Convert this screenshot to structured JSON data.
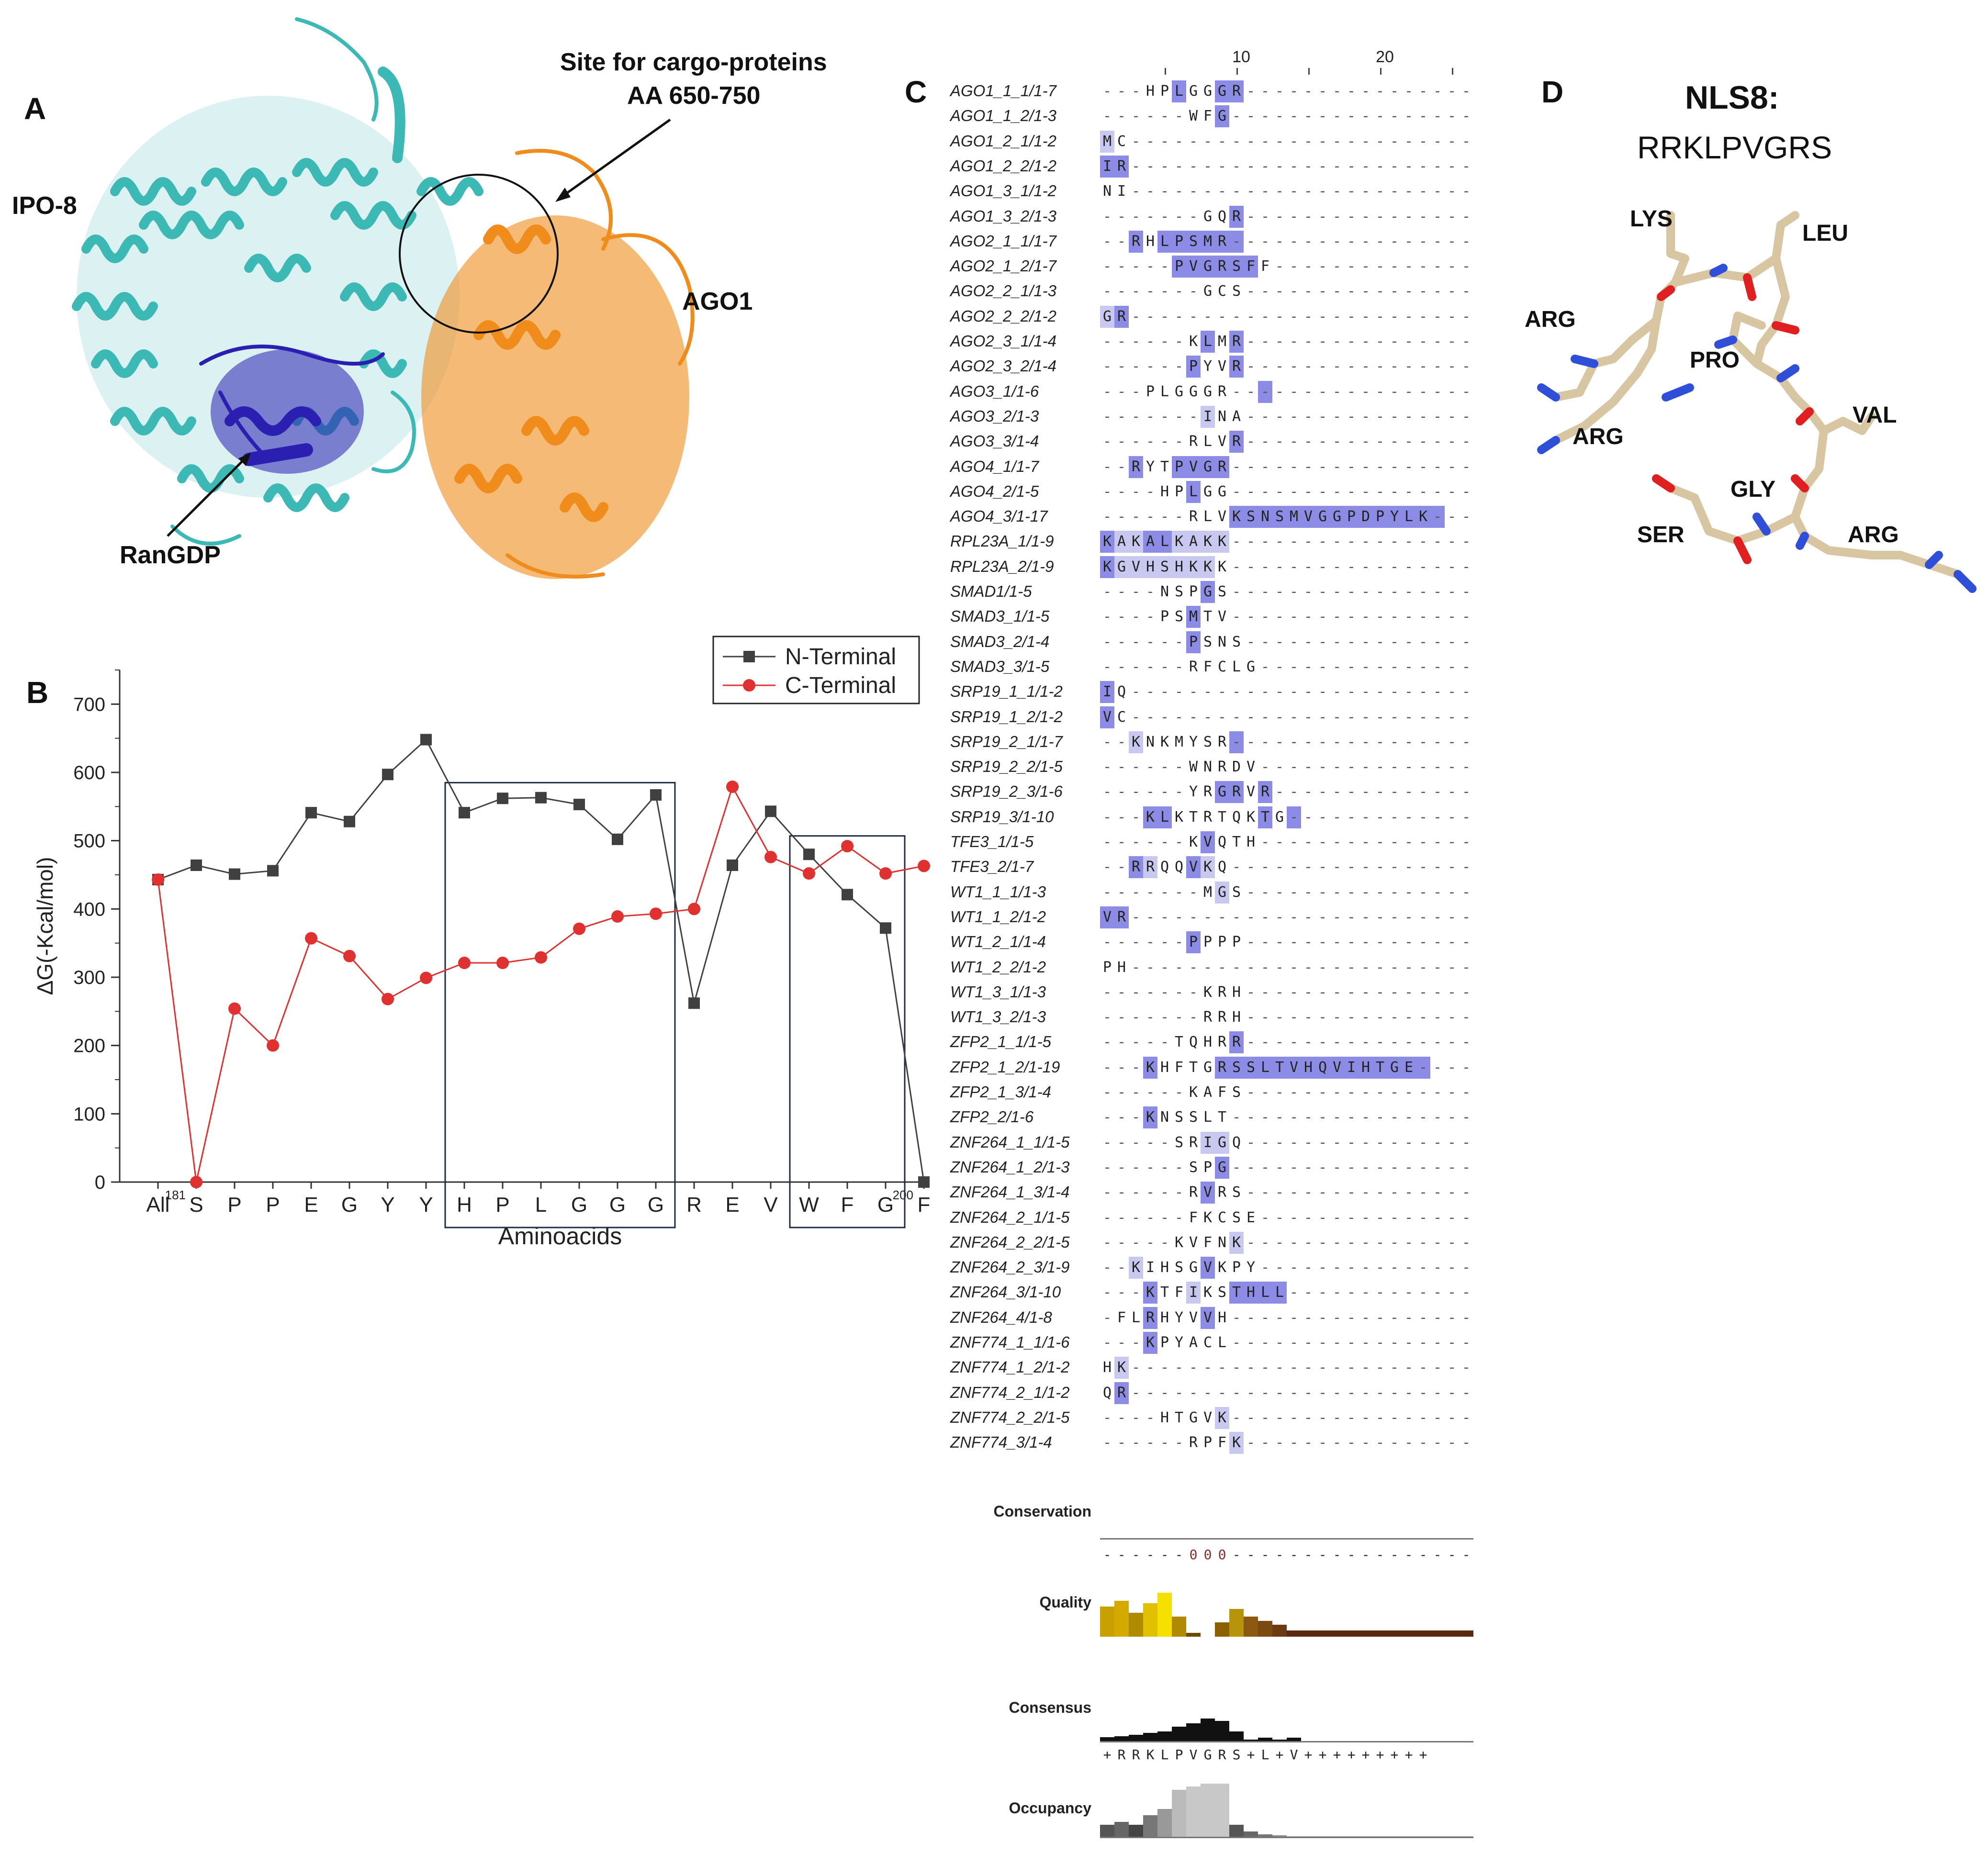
{
  "panels": {
    "A": "A",
    "B": "B",
    "C": "C",
    "D": "D"
  },
  "panel_a": {
    "labels": {
      "ipo8": "IPO-8",
      "site_line1": "Site for cargo-proteins",
      "site_line2": "AA 650-750",
      "ago1": "AGO1",
      "rangdp": "RanGDP"
    },
    "colors": {
      "ipo8": "#3cb9b5",
      "ago1": "#f08c1c",
      "rangdp": "#2a1fb0"
    }
  },
  "chart_data": {
    "type": "line",
    "categories": [
      "All",
      "S",
      "P",
      "P",
      "E",
      "G",
      "Y",
      "Y",
      "H",
      "P",
      "L",
      "G",
      "G",
      "G",
      "R",
      "E",
      "V",
      "W",
      "F",
      "G",
      "F"
    ],
    "category_superscripts": {
      "1": "181",
      "20": "200"
    },
    "series": [
      {
        "name": "N-Terminal",
        "color": "#404040",
        "marker": "square",
        "values": [
          443,
          464,
          451,
          456,
          541,
          528,
          597,
          648,
          541,
          562,
          563,
          553,
          502,
          567,
          262,
          464,
          543,
          480,
          421,
          372,
          0
        ]
      },
      {
        "name": "C-Terminal",
        "color": "#e03030",
        "marker": "circle",
        "values": [
          443,
          0,
          254,
          200,
          357,
          331,
          268,
          299,
          321,
          321,
          329,
          371,
          389,
          393,
          400,
          579,
          476,
          452,
          492,
          452,
          463
        ]
      }
    ],
    "ylabel": "ΔG(-Kcal/mol)",
    "xlabel": "Aminoacids",
    "ylim": [
      0,
      750
    ],
    "yticks": [
      0,
      100,
      200,
      300,
      400,
      500,
      600,
      700
    ],
    "highlight_boxes": [
      [
        8,
        13
      ],
      [
        17,
        19
      ]
    ],
    "legend_position": "top-right"
  },
  "panel_c": {
    "ruler": {
      "ticks": [
        "10",
        "20"
      ]
    },
    "highlight_colors": {
      "dark": "#8c8ce6",
      "light": "#c8c8f0"
    },
    "rows": [
      {
        "name": "AGO1_1_1/1-7",
        "seq": "---HPLGGGR----------------",
        "hl": "-----d--dd----------------"
      },
      {
        "name": "AGO1_1_2/1-3",
        "seq": "------WFG-----------------",
        "hl": "--------d-----------------"
      },
      {
        "name": "AGO1_2_1/1-2",
        "seq": "MC------------------------",
        "hl": "l-------------------------"
      },
      {
        "name": "AGO1_2_2/1-2",
        "seq": "IR------------------------",
        "hl": "dd------------------------"
      },
      {
        "name": "AGO1_3_1/1-2",
        "seq": "NI------------------------",
        "hl": "--------------------------"
      },
      {
        "name": "AGO1_3_2/1-3",
        "seq": "-------GQR----------------",
        "hl": "---------d----------------"
      },
      {
        "name": "AGO2_1_1/1-7",
        "seq": "--RHLPSMR-----------------",
        "hl": "--d-dddddd----------------"
      },
      {
        "name": "AGO2_1_2/1-7",
        "seq": "-----PVGRSFF--------------",
        "hl": "-----dddddd---------------"
      },
      {
        "name": "AGO2_2_1/1-3",
        "seq": "-------GCS----------------",
        "hl": "--------------------------"
      },
      {
        "name": "AGO2_2_2/1-2",
        "seq": "GR------------------------",
        "hl": "ld------------------------"
      },
      {
        "name": "AGO2_3_1/1-4",
        "seq": "------KLMR----------------",
        "hl": "-------d-d----------------"
      },
      {
        "name": "AGO2_3_2/1-4",
        "seq": "------PYVR----------------",
        "hl": "------d--d----------------"
      },
      {
        "name": "AGO3_1/1-6",
        "seq": "---PLGGGR-----------------",
        "hl": "-----------d--------------"
      },
      {
        "name": "AGO3_2/1-3",
        "seq": "-------INA----------------",
        "hl": "-------l------------------"
      },
      {
        "name": "AGO3_3/1-4",
        "seq": "------RLVR----------------",
        "hl": "---------d----------------"
      },
      {
        "name": "AGO4_1/1-7",
        "seq": "--RYTPVGR-----------------",
        "hl": "--d--dddd-----------------"
      },
      {
        "name": "AGO4_2/1-5",
        "seq": "----HPLGG-----------------",
        "hl": "------d-------------------"
      },
      {
        "name": "AGO4_3/1-17",
        "seq": "------RLVKSNSMVGGPDPYLK---",
        "hl": "---------ddddddddddddddd--"
      },
      {
        "name": "RPL23A_1/1-9",
        "seq": "KAKALKAKK-----------------",
        "hl": "dllddlllL-----------------"
      },
      {
        "name": "RPL23A_2/1-9",
        "seq": "KGVHSHKKK-----------------",
        "hl": "dlllllll------------------"
      },
      {
        "name": "SMAD1/1-5",
        "seq": "----NSPGS-----------------",
        "hl": "-------d------------------"
      },
      {
        "name": "SMAD3_1/1-5",
        "seq": "----PSMTV-----------------",
        "hl": "------d-------------------"
      },
      {
        "name": "SMAD3_2/1-4",
        "seq": "------PSNS----------------",
        "hl": "------d-------------------"
      },
      {
        "name": "SMAD3_3/1-5",
        "seq": "------RFCLG---------------",
        "hl": "--------------------------"
      },
      {
        "name": "SRP19_1_1/1-2",
        "seq": "IQ------------------------",
        "hl": "d-------------------------"
      },
      {
        "name": "SRP19_1_2/1-2",
        "seq": "VC------------------------",
        "hl": "d-------------------------"
      },
      {
        "name": "SRP19_2_1/1-7",
        "seq": "--KNKMYSR-----------------",
        "hl": "--l------d----------------"
      },
      {
        "name": "SRP19_2_2/1-5",
        "seq": "------WNRDV---------------",
        "hl": "--------------------------"
      },
      {
        "name": "SRP19_2_3/1-6",
        "seq": "------YRGRVR--------------",
        "hl": "--------dd-d--------------"
      },
      {
        "name": "SRP19_3/1-10",
        "seq": "---KLKTRTQKTG-------------",
        "hl": "---dd------d-d------------"
      },
      {
        "name": "TFE3_1/1-5",
        "seq": "------KVQTH---------------",
        "hl": "-------d------------------"
      },
      {
        "name": "TFE3_2/1-7",
        "seq": "--RRQQVKQ-----------------",
        "hl": "--dl--dl------------------"
      },
      {
        "name": "WT1_1_1/1-3",
        "seq": "-------MGS----------------",
        "hl": "--------l-----------------"
      },
      {
        "name": "WT1_1_2/1-2",
        "seq": "VR------------------------",
        "hl": "dd------------------------"
      },
      {
        "name": "WT1_2_1/1-4",
        "seq": "------PPPP----------------",
        "hl": "------d-------------------"
      },
      {
        "name": "WT1_2_2/1-2",
        "seq": "PH------------------------",
        "hl": "--------------------------"
      },
      {
        "name": "WT1_3_1/1-3",
        "seq": "-------KRH----------------",
        "hl": "--------------------------"
      },
      {
        "name": "WT1_3_2/1-3",
        "seq": "-------RRH----------------",
        "hl": "--------------------------"
      },
      {
        "name": "ZFP2_1_1/1-5",
        "seq": "-----TQHRR----------------",
        "hl": "---------d----------------"
      },
      {
        "name": "ZFP2_1_2/1-19",
        "seq": "---KHFTGRSSLTVHQVIHTGE----",
        "hl": "---d----ddddddddddddddd---"
      },
      {
        "name": "ZFP2_1_3/1-4",
        "seq": "------KAFS----------------",
        "hl": "--------------------------"
      },
      {
        "name": "ZFP2_2/1-6",
        "seq": "---KNSSLT-----------------",
        "hl": "---d----------------------"
      },
      {
        "name": "ZNF264_1_1/1-5",
        "seq": "-----SRIGQ----------------",
        "hl": "-------ll-----------------"
      },
      {
        "name": "ZNF264_1_2/1-3",
        "seq": "------SPG-----------------",
        "hl": "--------d-----------------"
      },
      {
        "name": "ZNF264_1_3/1-4",
        "seq": "------RVRS----------------",
        "hl": "-------d------------------"
      },
      {
        "name": "ZNF264_2_1/1-5",
        "seq": "------FKCSE---------------",
        "hl": "--------------------------"
      },
      {
        "name": "ZNF264_2_2/1-5",
        "seq": "-----KVFNK----------------",
        "hl": "---------l----------------"
      },
      {
        "name": "ZNF264_2_3/1-9",
        "seq": "--KIHSGVKPY---------------",
        "hl": "--l----d------------------"
      },
      {
        "name": "ZNF264_3/1-10",
        "seq": "---KTFIKSTHLL-------------",
        "hl": "---d--l--dddd-------------"
      },
      {
        "name": "ZNF264_4/1-8",
        "seq": "-FLRHYVVH-----------------",
        "hl": "---d---d------------------"
      },
      {
        "name": "ZNF774_1_1/1-6",
        "seq": "---KPYACL-----------------",
        "hl": "---d----------------------"
      },
      {
        "name": "ZNF774_1_2/1-2",
        "seq": "HK------------------------",
        "hl": "-l------------------------"
      },
      {
        "name": "ZNF774_2_1/1-2",
        "seq": "QR------------------------",
        "hl": "-d------------------------"
      },
      {
        "name": "ZNF774_2_2/1-5",
        "seq": "----HTGVK-----------------",
        "hl": "--------l-----------------"
      },
      {
        "name": "ZNF774_3/1-4",
        "seq": "------RPFK----------------",
        "hl": "---------l----------------"
      }
    ],
    "tracks": {
      "conservation_label": "Conservation",
      "conservation_row": "------000-----------------",
      "quality_label": "Quality",
      "quality_values": [
        0.38,
        0.45,
        0.3,
        0.42,
        0.55,
        0.25,
        0.05,
        0.0,
        0.18,
        0.35,
        0.25,
        0.2,
        0.15,
        0.08,
        0.08,
        0.08,
        0.08,
        0.08,
        0.08,
        0.08,
        0.08,
        0.08,
        0.08,
        0.08,
        0.08,
        0.08
      ],
      "quality_colors": [
        "#c8a000",
        "#d4aa00",
        "#b08a00",
        "#e0c000",
        "#f5e000",
        "#b08a00",
        "#6b4a00",
        "#ffffff",
        "#8b6000",
        "#b8940a",
        "#8b5a10",
        "#7a4a10",
        "#6b3a10",
        "#5a2a10",
        "#5a2a10",
        "#5a2a10",
        "#5a2a10",
        "#5a2a10",
        "#5a2a10",
        "#5a2a10",
        "#5a2a10",
        "#5a2a10",
        "#5a2a10",
        "#5a2a10",
        "#5a2a10",
        "#5a2a10"
      ],
      "consensus_label": "Consensus",
      "consensus_values": [
        0.05,
        0.06,
        0.08,
        0.1,
        0.12,
        0.18,
        0.22,
        0.28,
        0.25,
        0.12,
        0.02,
        0.04,
        0.02,
        0.04,
        0.0,
        0.0,
        0.0,
        0.0,
        0.0,
        0.0,
        0.0,
        0.0,
        0.0,
        0.0,
        0.0,
        0.0
      ],
      "consensus_row": "+RRKLPVGRS+L+V+++++++++",
      "occupancy_label": "Occupancy",
      "occupancy_values": [
        0.2,
        0.25,
        0.2,
        0.35,
        0.45,
        0.75,
        0.8,
        0.85,
        0.85,
        0.2,
        0.1,
        0.05,
        0.04,
        0.02,
        0.02,
        0.02,
        0.02,
        0.02,
        0.02,
        0.02,
        0.02,
        0.02,
        0.02,
        0.02,
        0.02,
        0.02
      ],
      "occupancy_colors": [
        "#555555",
        "#666666",
        "#444444",
        "#777777",
        "#999999",
        "#bbbbbb",
        "#c8c8c8",
        "#c8c8c8",
        "#c8c8c8",
        "#555555",
        "#666666",
        "#777777",
        "#888888",
        "#999999",
        "#999999",
        "#999999",
        "#999999",
        "#999999",
        "#999999",
        "#999999",
        "#999999",
        "#999999",
        "#999999",
        "#999999",
        "#999999",
        "#999999"
      ]
    }
  },
  "panel_d": {
    "title": "NLS8:",
    "sequence": "RRKLPVGRS",
    "residues": [
      "LYS",
      "LEU",
      "ARG",
      "PRO",
      "VAL",
      "ARG",
      "GLY",
      "SER",
      "ARG"
    ]
  }
}
